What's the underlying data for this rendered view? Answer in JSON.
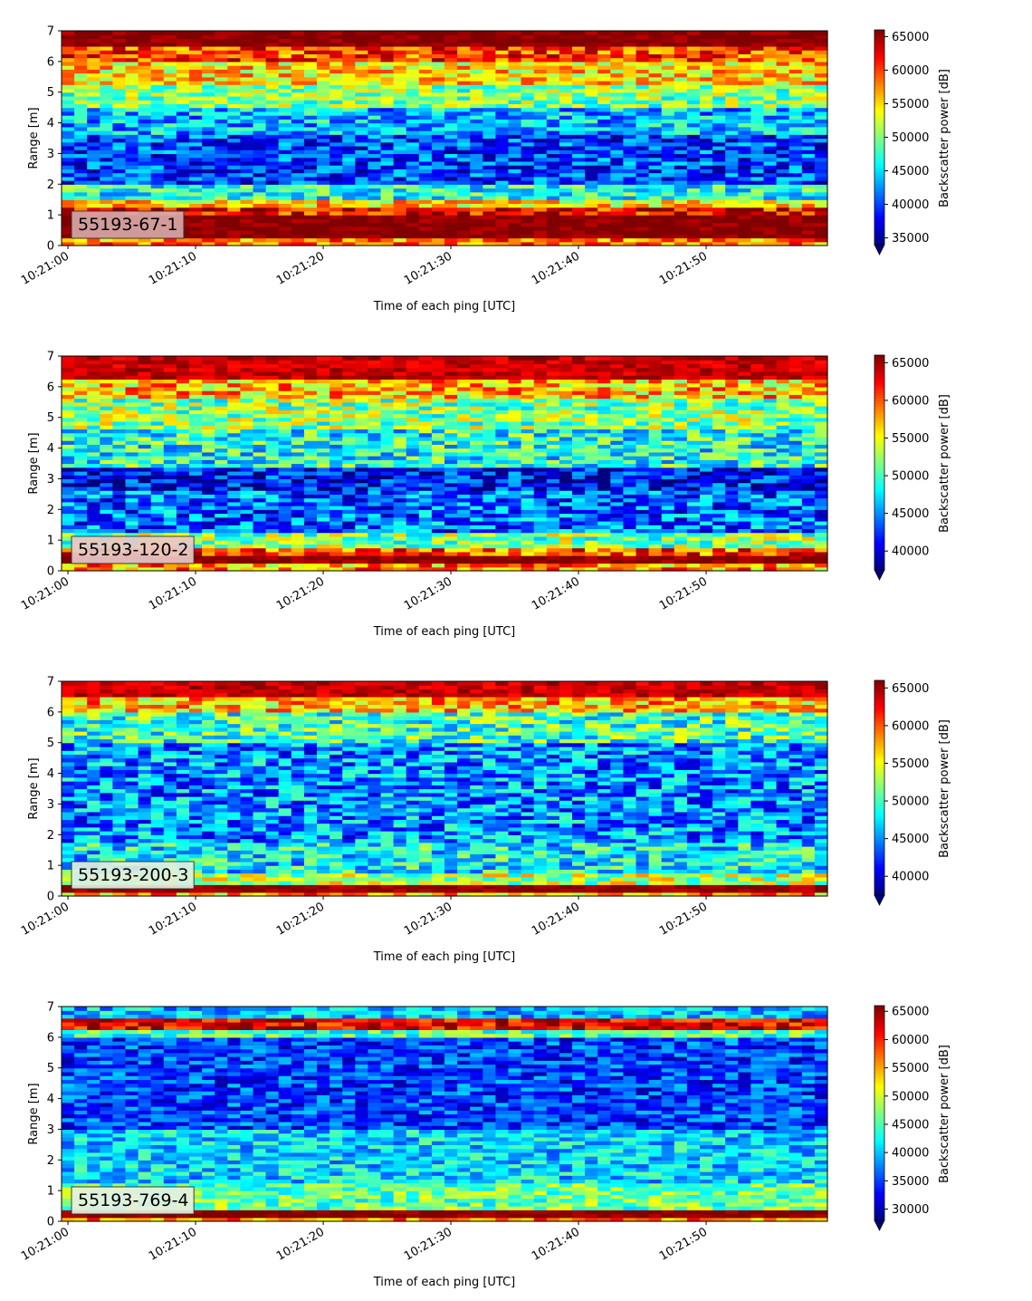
{
  "chart_data": [
    {
      "type": "heatmap",
      "label": "55193-67-1",
      "xlabel": "Time of each ping [UTC]",
      "ylabel": "Range [m]",
      "x_ticks": [
        "10:21:00",
        "10:21:10",
        "10:21:20",
        "10:21:30",
        "10:21:40",
        "10:21:50"
      ],
      "xlim_seconds": [
        -0.5,
        59.5
      ],
      "ylim": [
        0,
        7
      ],
      "y_ticks": [
        0,
        1,
        2,
        3,
        4,
        5,
        6,
        7
      ],
      "colorbar_label": "Backscatter power [dB]",
      "colorbar_ticks": [
        35000,
        40000,
        45000,
        50000,
        55000,
        60000,
        65000
      ],
      "vmin": 34000,
      "vmax": 66000,
      "extend": "min",
      "colormap": "jet",
      "label_box_color": "#d8a8a8",
      "bands": [
        {
          "y": [
            0.0,
            0.25
          ],
          "value": 58000
        },
        {
          "y": [
            0.25,
            1.0
          ],
          "value": 66000
        },
        {
          "y": [
            1.0,
            1.3
          ],
          "value": 62000
        },
        {
          "y": [
            1.3,
            1.5
          ],
          "value": 55000
        },
        {
          "y": [
            1.5,
            2.0
          ],
          "value": 47000
        },
        {
          "y": [
            2.0,
            3.6
          ],
          "value": 40000
        },
        {
          "y": [
            3.6,
            4.5
          ],
          "value": 44000
        },
        {
          "y": [
            4.5,
            5.3
          ],
          "value": 50000
        },
        {
          "y": [
            5.3,
            6.0
          ],
          "value": 55000
        },
        {
          "y": [
            6.0,
            6.5
          ],
          "value": 60000
        },
        {
          "y": [
            6.5,
            7.0
          ],
          "value": 66000
        }
      ]
    },
    {
      "type": "heatmap",
      "label": "55193-120-2",
      "xlabel": "Time of each ping [UTC]",
      "ylabel": "Range [m]",
      "x_ticks": [
        "10:21:00",
        "10:21:10",
        "10:21:20",
        "10:21:30",
        "10:21:40",
        "10:21:50"
      ],
      "xlim_seconds": [
        -0.5,
        59.5
      ],
      "ylim": [
        0,
        7
      ],
      "y_ticks": [
        0,
        1,
        2,
        3,
        4,
        5,
        6,
        7
      ],
      "colorbar_label": "Backscatter power [dB]",
      "colorbar_ticks": [
        40000,
        45000,
        50000,
        55000,
        60000,
        65000
      ],
      "vmin": 37500,
      "vmax": 66000,
      "extend": "min",
      "colormap": "jet",
      "label_box_color": "#e8c8c8",
      "bands": [
        {
          "y": [
            0.0,
            0.25
          ],
          "value": 58000
        },
        {
          "y": [
            0.25,
            0.55
          ],
          "value": 66000
        },
        {
          "y": [
            0.55,
            0.7
          ],
          "value": 60000
        },
        {
          "y": [
            0.7,
            1.3
          ],
          "value": 52000
        },
        {
          "y": [
            1.3,
            2.6
          ],
          "value": 44000
        },
        {
          "y": [
            2.6,
            3.4
          ],
          "value": 41000
        },
        {
          "y": [
            3.4,
            4.6
          ],
          "value": 49000
        },
        {
          "y": [
            4.6,
            5.6
          ],
          "value": 52000
        },
        {
          "y": [
            5.6,
            6.3
          ],
          "value": 57000
        },
        {
          "y": [
            6.3,
            7.0
          ],
          "value": 64000
        }
      ]
    },
    {
      "type": "heatmap",
      "label": "55193-200-3",
      "xlabel": "Time of each ping [UTC]",
      "ylabel": "Range [m]",
      "x_ticks": [
        "10:21:00",
        "10:21:10",
        "10:21:20",
        "10:21:30",
        "10:21:40",
        "10:21:50"
      ],
      "xlim_seconds": [
        -0.5,
        59.5
      ],
      "ylim": [
        0,
        7
      ],
      "y_ticks": [
        0,
        1,
        2,
        3,
        4,
        5,
        6,
        7
      ],
      "colorbar_label": "Backscatter power [dB]",
      "colorbar_ticks": [
        40000,
        45000,
        50000,
        55000,
        60000,
        65000
      ],
      "vmin": 37500,
      "vmax": 66000,
      "extend": "min",
      "colormap": "jet",
      "label_box_color": "#e0f0e0",
      "bands": [
        {
          "y": [
            0.0,
            0.15
          ],
          "value": 58000
        },
        {
          "y": [
            0.15,
            0.4
          ],
          "value": 66000
        },
        {
          "y": [
            0.4,
            0.8
          ],
          "value": 53000
        },
        {
          "y": [
            0.8,
            1.8
          ],
          "value": 48000
        },
        {
          "y": [
            1.8,
            5.0
          ],
          "value": 45000
        },
        {
          "y": [
            5.0,
            6.0
          ],
          "value": 50000
        },
        {
          "y": [
            6.0,
            6.5
          ],
          "value": 57000
        },
        {
          "y": [
            6.5,
            7.0
          ],
          "value": 64000
        }
      ]
    },
    {
      "type": "heatmap",
      "label": "55193-769-4",
      "xlabel": "Time of each ping [UTC]",
      "ylabel": "Range [m]",
      "x_ticks": [
        "10:21:00",
        "10:21:10",
        "10:21:20",
        "10:21:30",
        "10:21:40",
        "10:21:50"
      ],
      "xlim_seconds": [
        -0.5,
        59.5
      ],
      "ylim": [
        0,
        7
      ],
      "y_ticks": [
        0,
        1,
        2,
        3,
        4,
        5,
        6,
        7
      ],
      "colorbar_label": "Backscatter power [dB]",
      "colorbar_ticks": [
        30000,
        35000,
        40000,
        45000,
        50000,
        55000,
        60000,
        65000
      ],
      "vmin": 28000,
      "vmax": 66000,
      "extend": "min",
      "colormap": "jet",
      "label_box_color": "#e8f0e0",
      "bands": [
        {
          "y": [
            0.0,
            0.15
          ],
          "value": 56000
        },
        {
          "y": [
            0.15,
            0.4
          ],
          "value": 66000
        },
        {
          "y": [
            0.4,
            1.2
          ],
          "value": 46000
        },
        {
          "y": [
            1.2,
            3.0
          ],
          "value": 41000
        },
        {
          "y": [
            3.0,
            6.0
          ],
          "value": 35000
        },
        {
          "y": [
            6.0,
            6.3
          ],
          "value": 45000
        },
        {
          "y": [
            6.3,
            6.6
          ],
          "value": 62000
        },
        {
          "y": [
            6.6,
            7.0
          ],
          "value": 40000
        }
      ]
    }
  ]
}
